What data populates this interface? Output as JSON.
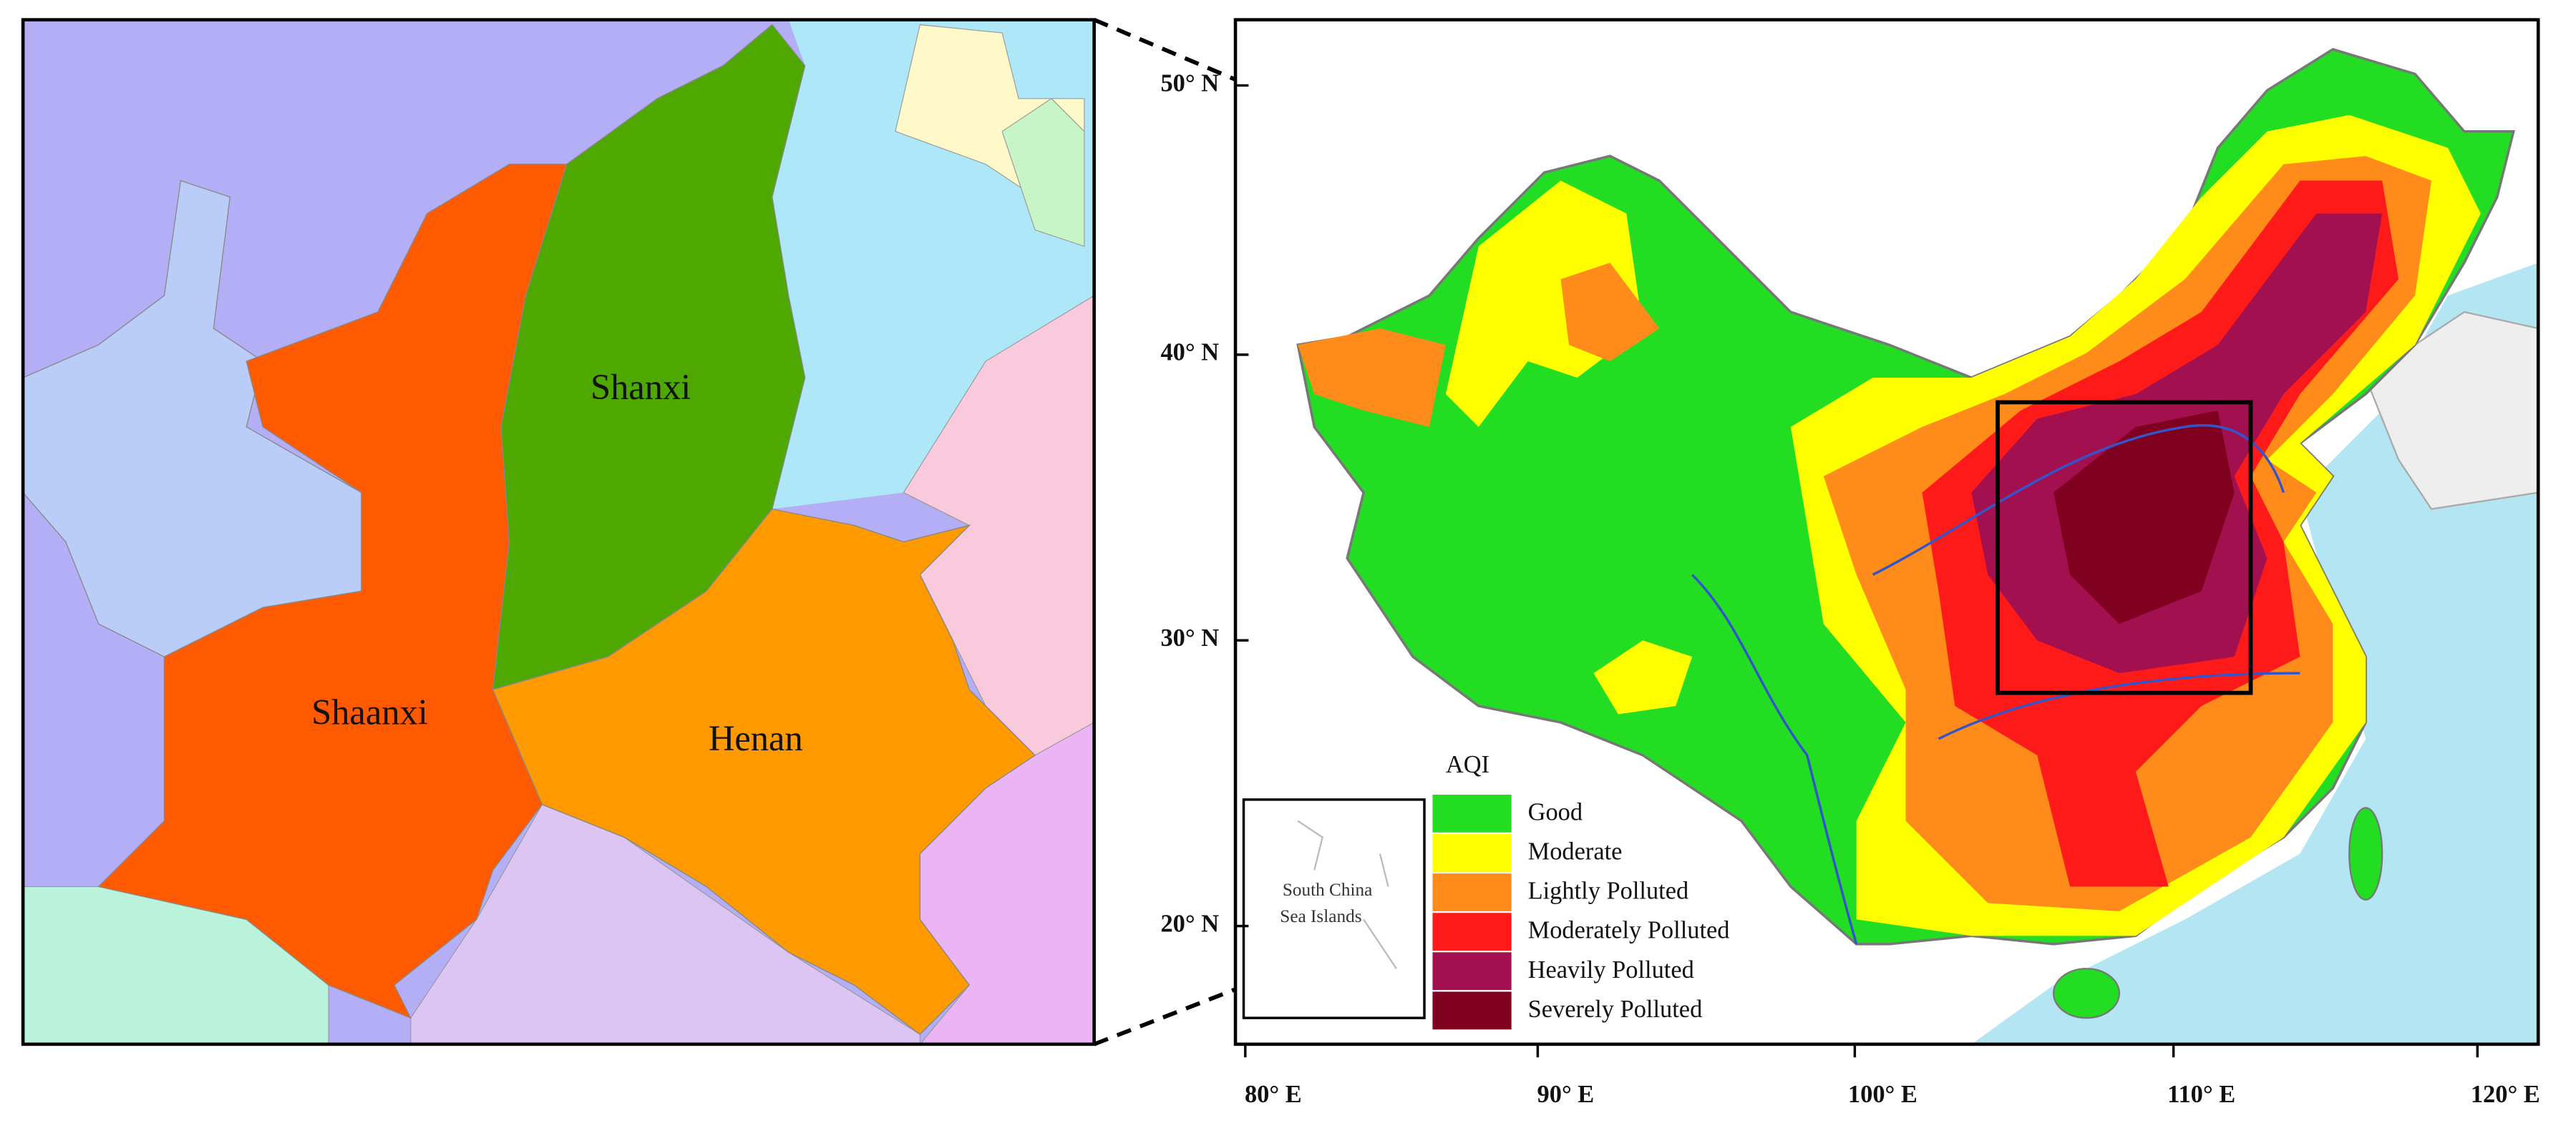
{
  "left_map": {
    "provinces": [
      "Shanxi",
      "Shaanxi",
      "Henan"
    ]
  },
  "right_map": {
    "lat_labels": [
      "50° N",
      "40° N",
      "30° N",
      "20° N"
    ],
    "lon_labels": [
      "80° E",
      "90° E",
      "100° E",
      "110° E",
      "120° E"
    ],
    "legend": {
      "title": "AQI",
      "items": [
        {
          "label": "Good",
          "color": "#22dd22"
        },
        {
          "label": "Moderate",
          "color": "#ffff00"
        },
        {
          "label": "Lightly Polluted",
          "color": "#ff8c1a"
        },
        {
          "label": "Moderately Polluted",
          "color": "#ff1a1a"
        },
        {
          "label": "Heavily Polluted",
          "color": "#a3104f"
        },
        {
          "label": "Severely Polluted",
          "color": "#800020"
        }
      ]
    },
    "inset": {
      "label_lines": [
        "South China",
        "Sea Islands"
      ]
    }
  }
}
